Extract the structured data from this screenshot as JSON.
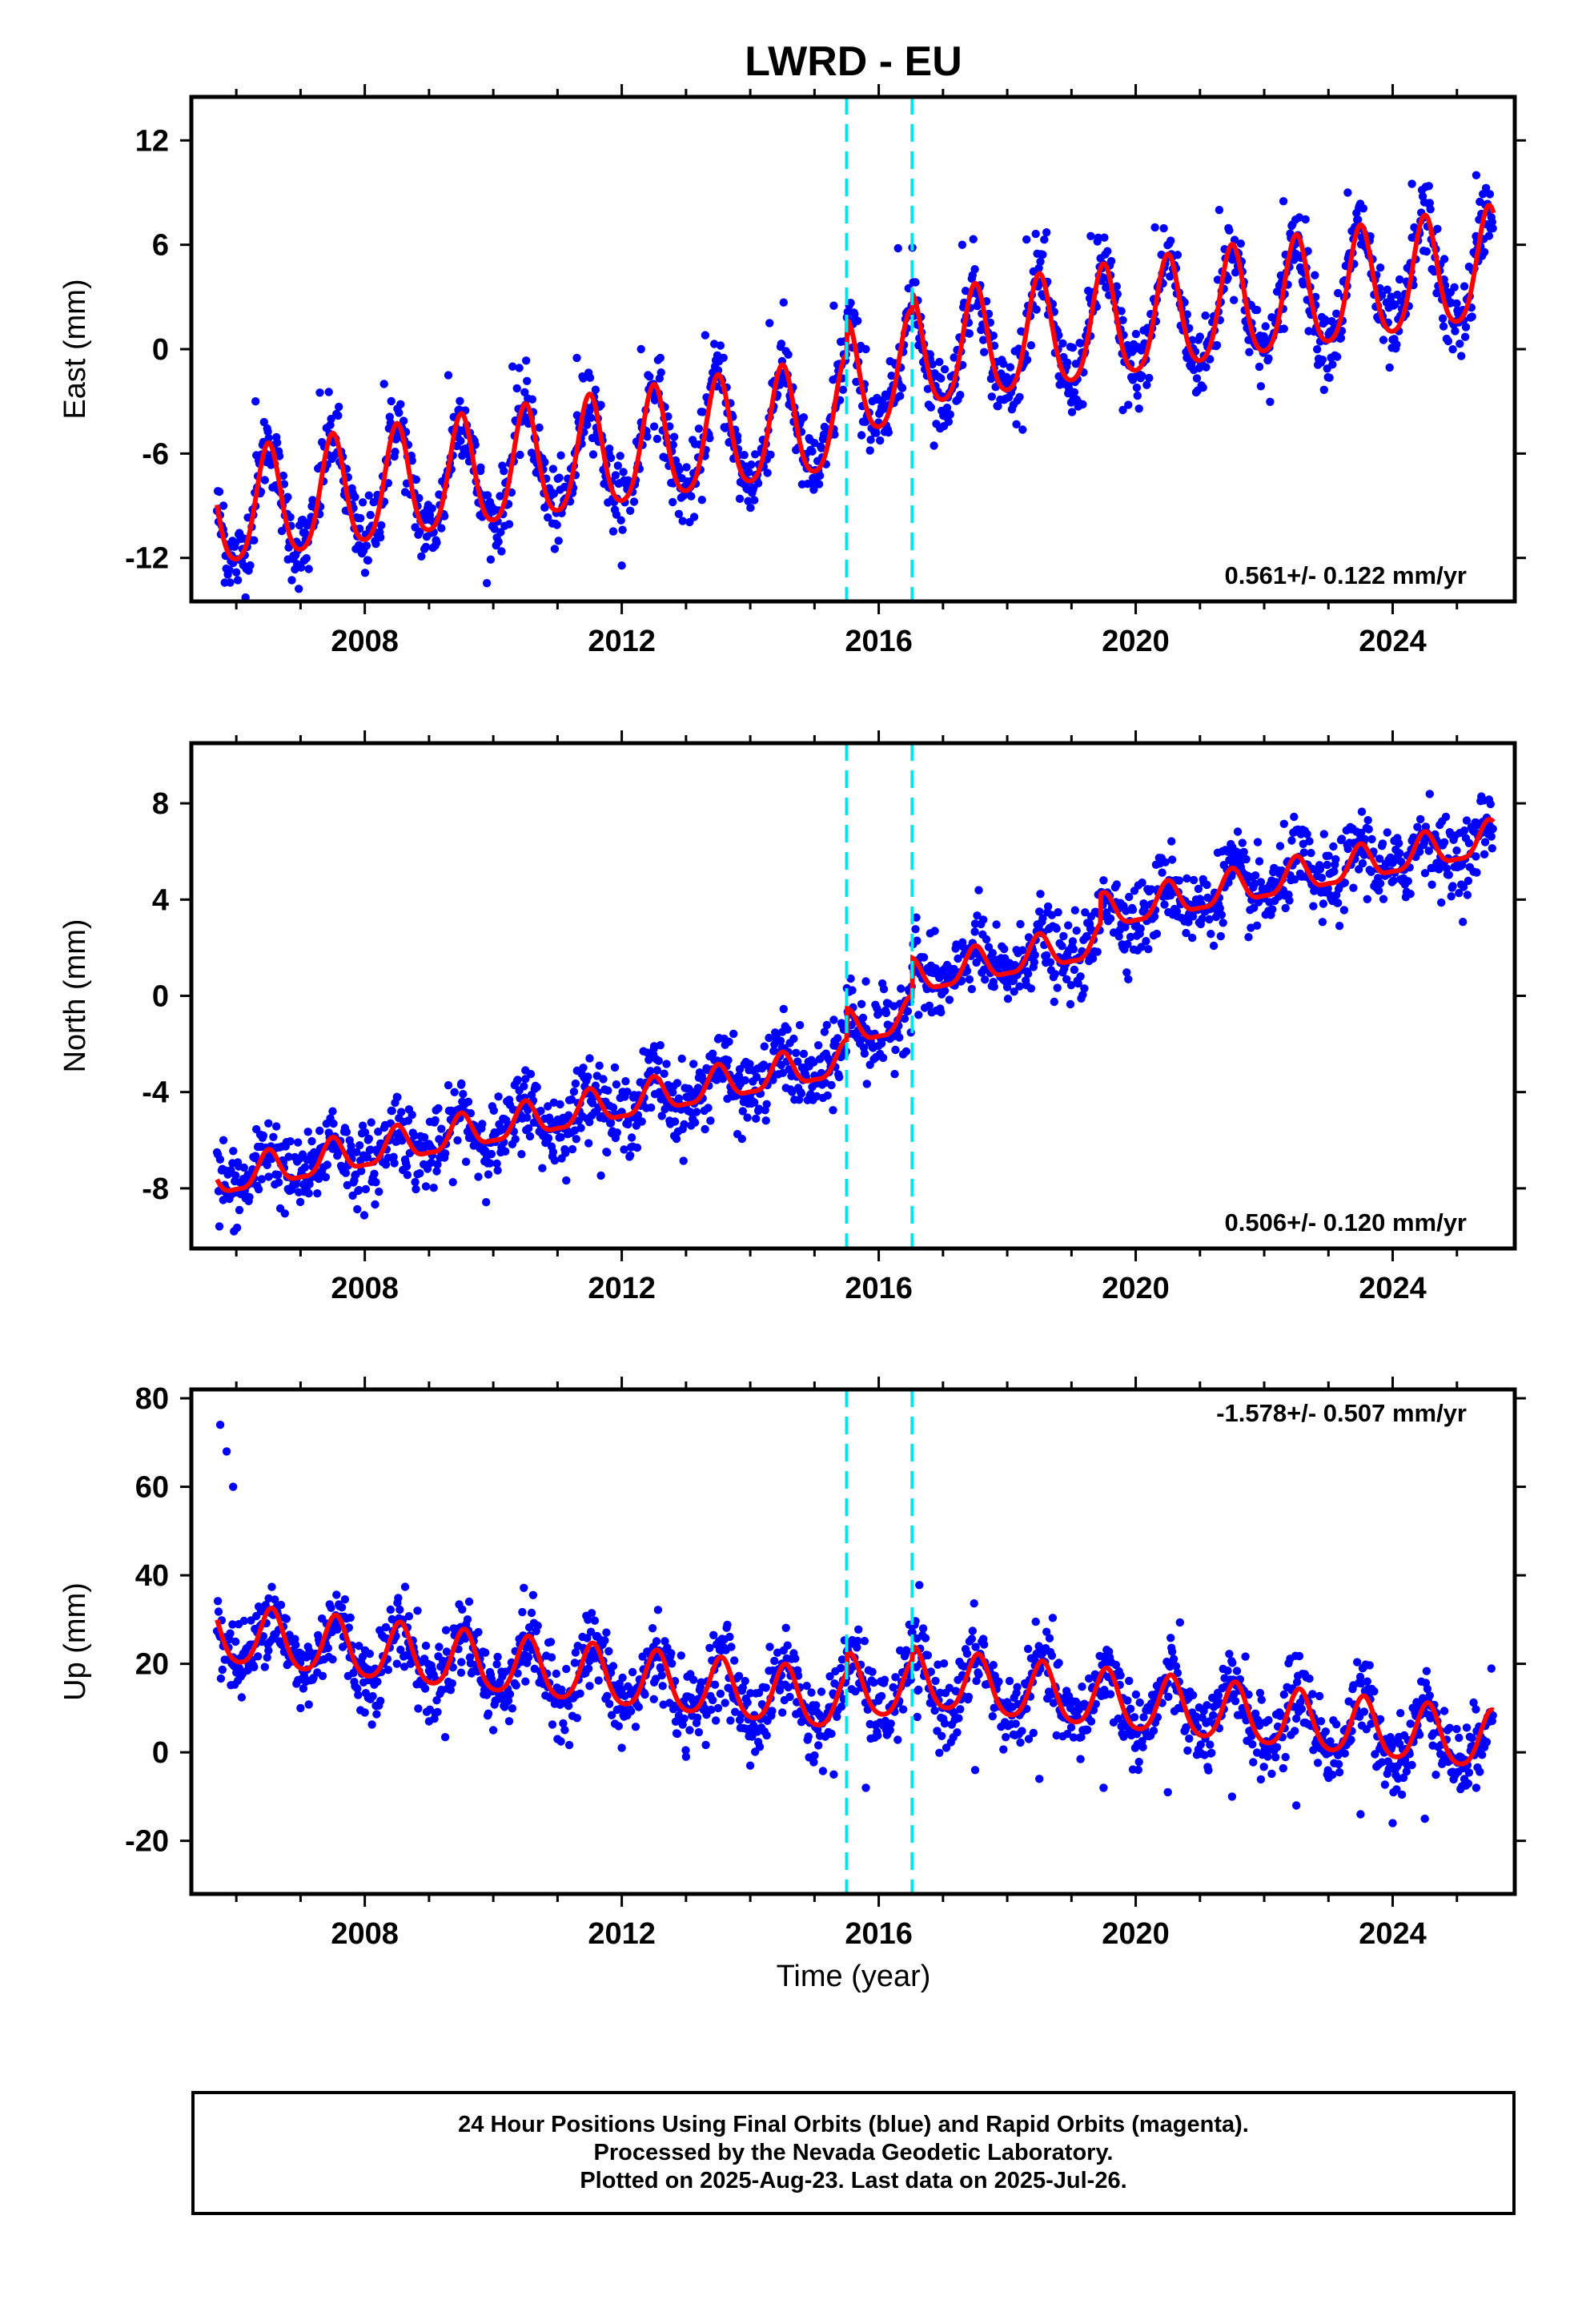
{
  "title": "LWRD - EU",
  "xlabel": "Time (year)",
  "colors": {
    "data": "#0000ff",
    "fit": "#ff0000",
    "offset": "#00e5ee",
    "frame": "#000000"
  },
  "footer": {
    "line1": "24 Hour Positions Using Final Orbits (blue) and Rapid Orbits (magenta).",
    "line2": "Processed by the Nevada Geodetic Laboratory.",
    "line3": "Plotted on 2025-Aug-23. Last data on 2025-Jul-26."
  },
  "chart_data": [
    {
      "type": "scatter",
      "ylabel": "East (mm)",
      "rate_label": "0.561+/- 0.122 mm/yr",
      "rate_position": "bottom-right",
      "xlim": [
        2005.3,
        2025.9
      ],
      "ylim": [
        -14.5,
        14.5
      ],
      "xticks": [
        2008,
        2012,
        2016,
        2020,
        2024
      ],
      "yticks": [
        -12,
        -6,
        0,
        6,
        12
      ],
      "offset_years": [
        2015.5,
        2016.52
      ],
      "fit": {
        "trend": 0.561,
        "intercept": -6.0,
        "annual_amp": 3.2,
        "semiannual_amp": 0.5,
        "phase_peak": 0.5,
        "data_start": 2005.7,
        "data_end": 2025.57,
        "offsets": [
          [
            2015.5,
            2.0
          ],
          [
            2016.52,
            1.0
          ],
          [
            2019.45,
            0.0
          ]
        ]
      },
      "series": [
        {
          "name": "Final Orbits",
          "x": [
            2005.8,
            2006.3,
            2006.8,
            2007.3,
            2007.8,
            2008.3,
            2008.8,
            2009.3,
            2009.8,
            2010.3,
            2010.8,
            2011.3,
            2011.8,
            2012.3,
            2012.8,
            2013.3,
            2013.8,
            2014.3,
            2014.8,
            2015.3,
            2015.8,
            2016.3,
            2016.8,
            2017.3,
            2017.8,
            2018.3,
            2018.8,
            2019.3,
            2019.8,
            2020.3,
            2020.8,
            2021.3,
            2021.8,
            2022.3,
            2022.8,
            2023.3,
            2023.8,
            2024.3,
            2024.8,
            2025.3
          ],
          "y": [
            -9.0,
            -3.0,
            -8.5,
            -2.5,
            -8.0,
            -2.0,
            -7.5,
            -1.5,
            -7.0,
            -1.0,
            -6.5,
            -0.5,
            -6.0,
            0.0,
            -5.5,
            0.8,
            -5.0,
            1.5,
            -4.0,
            2.5,
            0.0,
            5.8,
            -0.3,
            6.0,
            0.2,
            6.3,
            0.8,
            6.5,
            -3.5,
            7.0,
            2.0,
            8.0,
            2.5,
            8.5,
            3.0,
            9.0,
            3.5,
            9.5,
            4.0,
            10.0
          ]
        }
      ]
    },
    {
      "type": "scatter",
      "ylabel": "North (mm)",
      "rate_label": "0.506+/- 0.120 mm/yr",
      "rate_position": "bottom-right",
      "xlim": [
        2005.3,
        2025.9
      ],
      "ylim": [
        -10.5,
        10.5
      ],
      "xticks": [
        2008,
        2012,
        2016,
        2020,
        2024
      ],
      "yticks": [
        -8,
        -4,
        0,
        4,
        8
      ],
      "offset_years": [
        2015.5,
        2016.52
      ],
      "fit": {
        "trend": 0.506,
        "intercept": -4.5,
        "annual_amp": 0.7,
        "semiannual_amp": 0.2,
        "phase_peak": 0.5,
        "data_start": 2005.7,
        "data_end": 2025.57,
        "offsets": [
          [
            2015.5,
            1.3
          ],
          [
            2016.52,
            1.6
          ],
          [
            2019.45,
            1.2
          ]
        ]
      },
      "series": [
        {
          "name": "Final Orbits",
          "x": [
            2005.8,
            2006.5,
            2007.5,
            2008.5,
            2009.5,
            2010.5,
            2011.5,
            2012.5,
            2013.5,
            2014.5,
            2015.3,
            2015.8,
            2016.8,
            2017.5,
            2018.5,
            2019.5,
            2020.5,
            2021.5,
            2022.5,
            2023.5,
            2024.5,
            2025.3
          ],
          "y": [
            -6.0,
            -5.3,
            -4.8,
            -4.2,
            -3.7,
            -3.1,
            -2.6,
            -2.2,
            -1.8,
            -1.5,
            -1.0,
            0.6,
            2.6,
            3.0,
            3.5,
            4.8,
            4.5,
            5.1,
            5.6,
            6.1,
            6.6,
            7.2
          ]
        }
      ]
    },
    {
      "type": "scatter",
      "ylabel": "Up (mm)",
      "rate_label": "-1.578+/- 0.507 mm/yr",
      "rate_position": "top-right",
      "xlim": [
        2005.3,
        2025.9
      ],
      "ylim": [
        -32,
        82
      ],
      "xticks": [
        2008,
        2012,
        2016,
        2020,
        2024
      ],
      "yticks": [
        -20,
        0,
        20,
        40,
        60,
        80
      ],
      "offset_years": [
        2015.5,
        2016.52
      ],
      "fit": {
        "trend": -1.578,
        "intercept": 16.5,
        "annual_amp": 6.5,
        "semiannual_amp": 1.0,
        "phase_peak": 0.55,
        "data_start": 2005.7,
        "data_end": 2025.57,
        "offsets": [
          [
            2015.5,
            4.0
          ],
          [
            2016.52,
            3.0
          ]
        ]
      },
      "series": [
        {
          "name": "Final Orbits",
          "x": [
            2005.75,
            2005.85,
            2005.95,
            2006.5,
            2007.0,
            2007.5,
            2008.0,
            2008.5,
            2009.0,
            2009.5,
            2010.0,
            2010.5,
            2011.0,
            2011.5,
            2012.0,
            2012.5,
            2013.0,
            2013.5,
            2014.0,
            2014.5,
            2015.3,
            2015.8,
            2016.6,
            2017.5,
            2018.5,
            2019.5,
            2020.5,
            2021.5,
            2022.5,
            2023.5,
            2024.0,
            2024.5,
            2025.3
          ],
          "y": [
            74,
            68,
            60,
            23,
            10,
            21,
            9,
            20,
            7,
            18,
            5,
            16,
            3,
            15,
            1,
            12,
            -1,
            10,
            -3,
            9,
            -5,
            -8,
            8,
            -4,
            -6,
            -8,
            -9,
            -10,
            -12,
            -14,
            -16,
            -15,
            -8
          ]
        }
      ]
    }
  ]
}
